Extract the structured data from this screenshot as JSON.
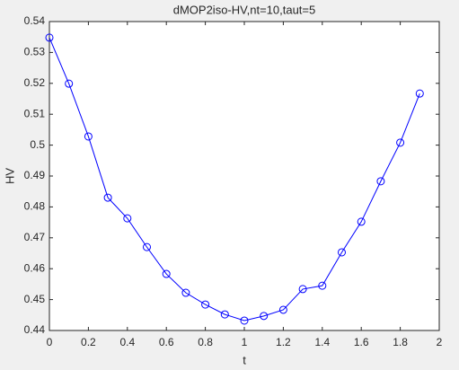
{
  "chart_data": {
    "type": "line",
    "title": "dMOP2iso-HV,nt=10,taut=5",
    "x_label": "t",
    "y_label": "HV",
    "x": [
      0,
      0.1,
      0.2,
      0.3,
      0.4,
      0.5,
      0.6,
      0.7,
      0.8,
      0.9,
      1.0,
      1.1,
      1.2,
      1.3,
      1.4,
      1.5,
      1.6,
      1.7,
      1.8,
      1.9
    ],
    "series": [
      {
        "color": "#0000ff",
        "marker": "circle",
        "values": [
          0.5348,
          0.5199,
          0.5028,
          0.483,
          0.4763,
          0.467,
          0.4583,
          0.4522,
          0.4484,
          0.4452,
          0.4432,
          0.4447,
          0.4467,
          0.4534,
          0.4545,
          0.4653,
          0.4752,
          0.4883,
          0.5008,
          0.5167
        ]
      }
    ],
    "xlim": [
      0,
      2
    ],
    "ylim": [
      0.44,
      0.54
    ],
    "xticks": [
      0,
      0.2,
      0.4,
      0.6,
      0.8,
      1,
      1.2,
      1.4,
      1.6,
      1.8,
      2
    ],
    "yticks": [
      0.44,
      0.45,
      0.46,
      0.47,
      0.48,
      0.49,
      0.5,
      0.51,
      0.52,
      0.53,
      0.54
    ]
  }
}
